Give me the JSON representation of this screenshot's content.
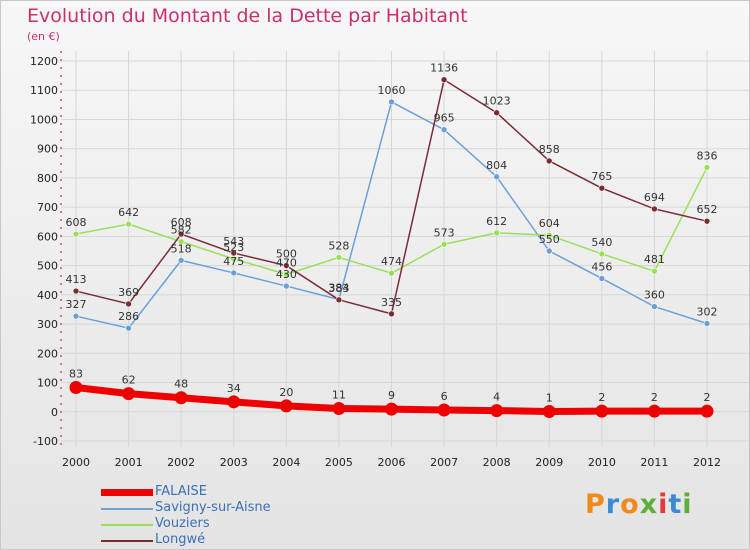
{
  "chart_data": {
    "type": "line",
    "title": "Evolution du Montant de la Dette par Habitant",
    "subtitle": "(en €)",
    "xlabel": "",
    "ylabel": "",
    "x": [
      "2000",
      "2001",
      "2002",
      "2003",
      "2004",
      "2005",
      "2006",
      "2007",
      "2008",
      "2009",
      "2010",
      "2011",
      "2012"
    ],
    "ylim": [
      -100,
      1200
    ],
    "yticks": [
      -100,
      0,
      100,
      200,
      300,
      400,
      500,
      600,
      700,
      800,
      900,
      1000,
      1100,
      1200
    ],
    "grid": true,
    "legend_position": "bottom-left",
    "series": [
      {
        "name": "FALAISE",
        "color": "#ee0000",
        "values": [
          83,
          62,
          48,
          34,
          20,
          11,
          9,
          6,
          4,
          1,
          2,
          2,
          2
        ]
      },
      {
        "name": "Savigny-sur-Aisne",
        "color": "#6aa0d8",
        "values": [
          327,
          286,
          518,
          475,
          430,
          384,
          1060,
          965,
          804,
          550,
          456,
          360,
          302
        ]
      },
      {
        "name": "Vouziers",
        "color": "#99e05a",
        "values": [
          608,
          642,
          582,
          523,
          470,
          528,
          474,
          573,
          612,
          604,
          540,
          481,
          836
        ]
      },
      {
        "name": "Longwé",
        "color": "#7a2c35",
        "values": [
          413,
          369,
          608,
          543,
          500,
          383,
          335,
          1136,
          1023,
          858,
          765,
          694,
          652
        ]
      }
    ]
  },
  "logo": {
    "text": "Proxiti",
    "colors": [
      "#f08a1a",
      "#3a8ad6",
      "#f08a1a",
      "#5ab03a",
      "#e53a3a",
      "#3a8ad6",
      "#5ab03a"
    ]
  }
}
